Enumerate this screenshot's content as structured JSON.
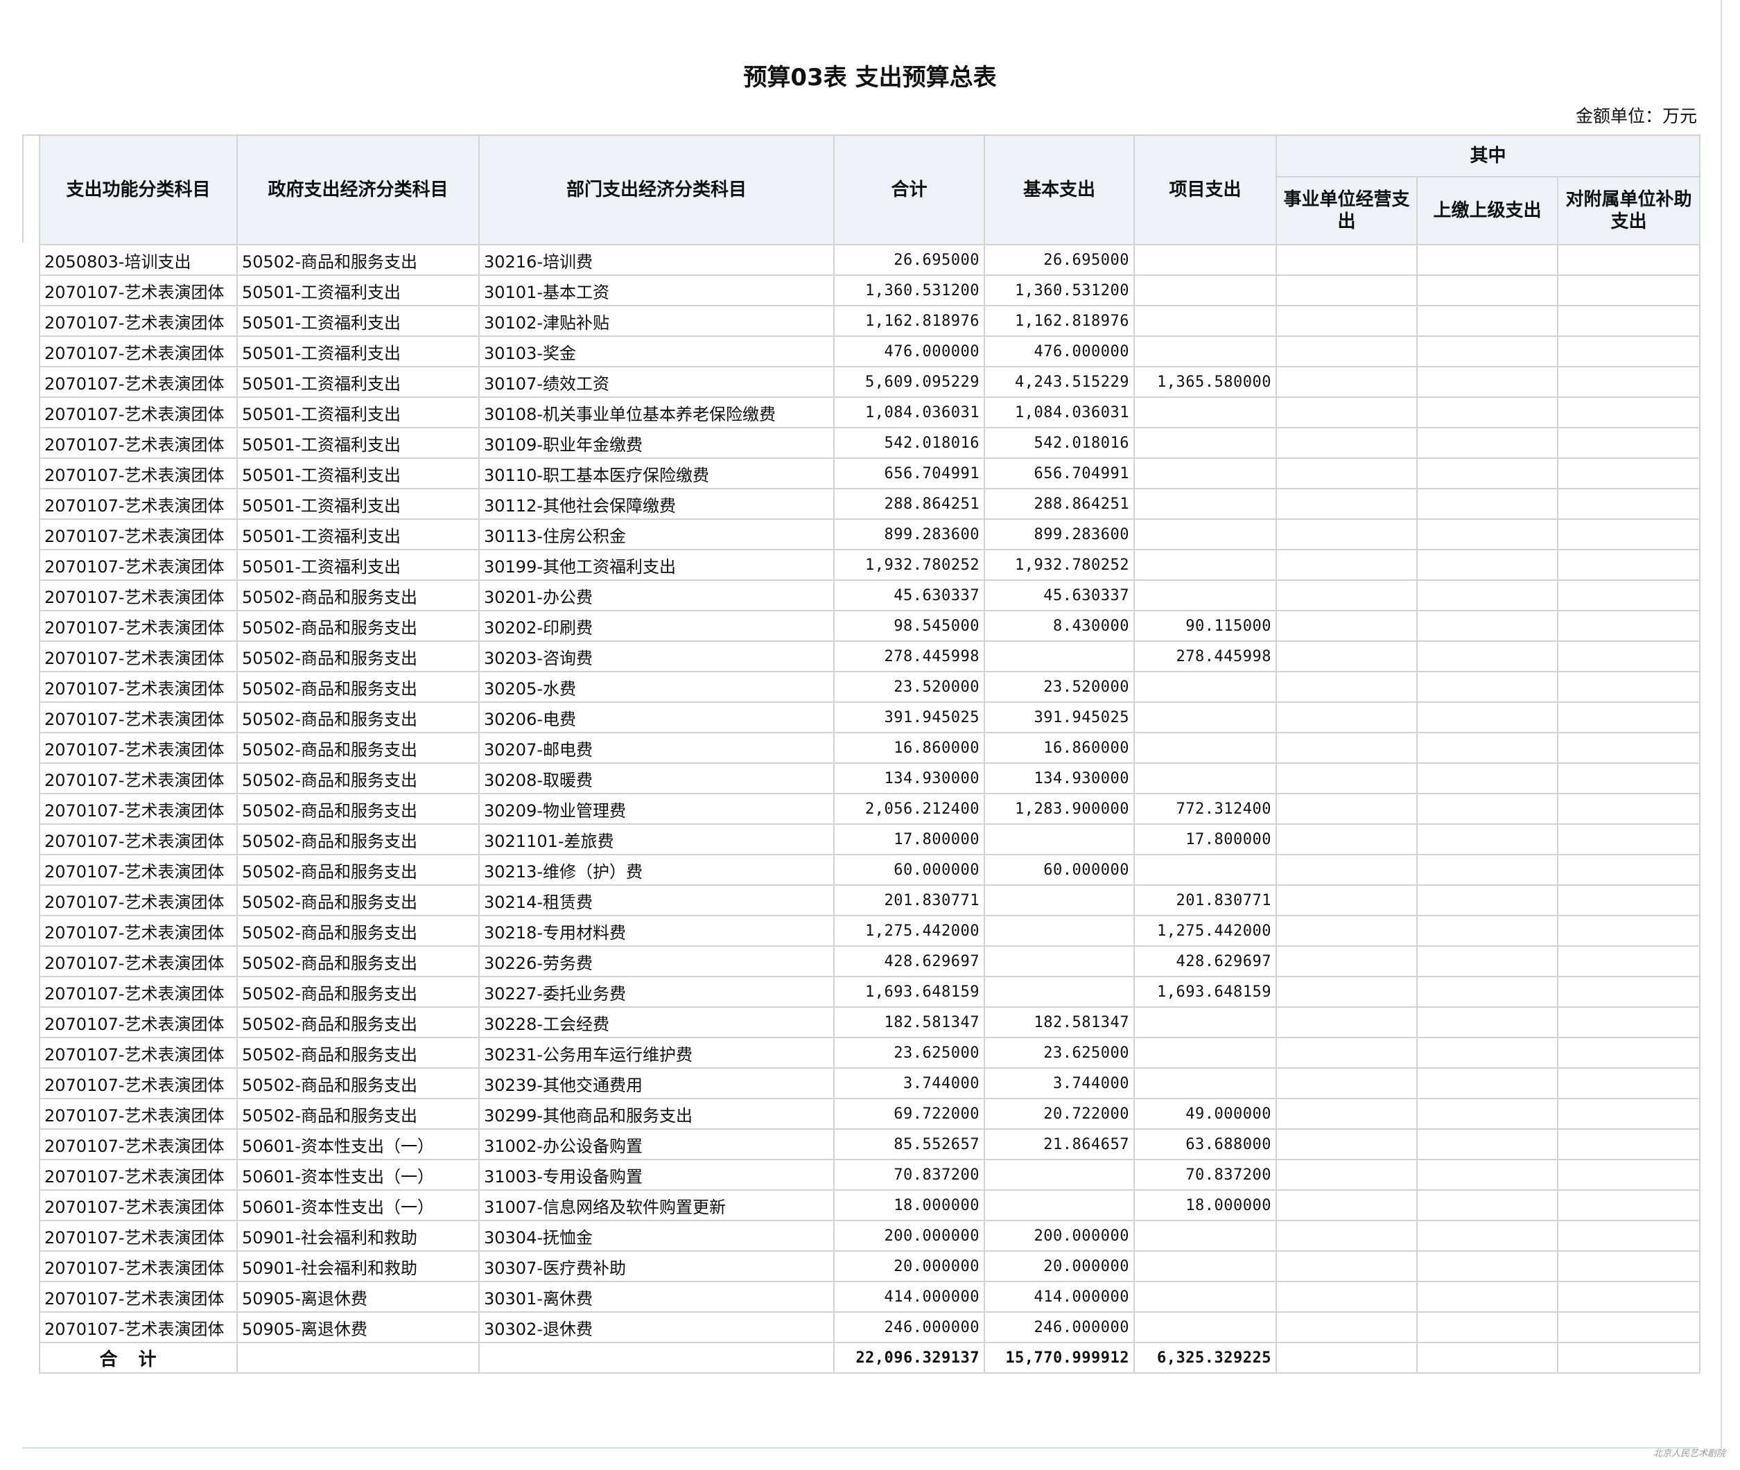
{
  "title": "预算03表 支出预算总表",
  "unit": "金额单位：万元",
  "headers": {
    "func": "支出功能分类科目",
    "gov": "政府支出经济分类科目",
    "dept": "部门支出经济分类科目",
    "total": "合计",
    "basic": "基本支出",
    "project": "项目支出",
    "among": "其中",
    "biz": "事业单位经营支出",
    "upper": "上缴上级支出",
    "subsidy": "对附属单位补助支出"
  },
  "rows": [
    [
      "2050803-培训支出",
      "50502-商品和服务支出",
      "30216-培训费",
      "26.695000",
      "26.695000",
      ""
    ],
    [
      "2070107-艺术表演团体",
      "50501-工资福利支出",
      "30101-基本工资",
      "1,360.531200",
      "1,360.531200",
      ""
    ],
    [
      "2070107-艺术表演团体",
      "50501-工资福利支出",
      "30102-津贴补贴",
      "1,162.818976",
      "1,162.818976",
      ""
    ],
    [
      "2070107-艺术表演团体",
      "50501-工资福利支出",
      "30103-奖金",
      "476.000000",
      "476.000000",
      ""
    ],
    [
      "2070107-艺术表演团体",
      "50501-工资福利支出",
      "30107-绩效工资",
      "5,609.095229",
      "4,243.515229",
      "1,365.580000"
    ],
    [
      "2070107-艺术表演团体",
      "50501-工资福利支出",
      "30108-机关事业单位基本养老保险缴费",
      "1,084.036031",
      "1,084.036031",
      ""
    ],
    [
      "2070107-艺术表演团体",
      "50501-工资福利支出",
      "30109-职业年金缴费",
      "542.018016",
      "542.018016",
      ""
    ],
    [
      "2070107-艺术表演团体",
      "50501-工资福利支出",
      "30110-职工基本医疗保险缴费",
      "656.704991",
      "656.704991",
      ""
    ],
    [
      "2070107-艺术表演团体",
      "50501-工资福利支出",
      "30112-其他社会保障缴费",
      "288.864251",
      "288.864251",
      ""
    ],
    [
      "2070107-艺术表演团体",
      "50501-工资福利支出",
      "30113-住房公积金",
      "899.283600",
      "899.283600",
      ""
    ],
    [
      "2070107-艺术表演团体",
      "50501-工资福利支出",
      "30199-其他工资福利支出",
      "1,932.780252",
      "1,932.780252",
      ""
    ],
    [
      "2070107-艺术表演团体",
      "50502-商品和服务支出",
      "30201-办公费",
      "45.630337",
      "45.630337",
      ""
    ],
    [
      "2070107-艺术表演团体",
      "50502-商品和服务支出",
      "30202-印刷费",
      "98.545000",
      "8.430000",
      "90.115000"
    ],
    [
      "2070107-艺术表演团体",
      "50502-商品和服务支出",
      "30203-咨询费",
      "278.445998",
      "",
      "278.445998"
    ],
    [
      "2070107-艺术表演团体",
      "50502-商品和服务支出",
      "30205-水费",
      "23.520000",
      "23.520000",
      ""
    ],
    [
      "2070107-艺术表演团体",
      "50502-商品和服务支出",
      "30206-电费",
      "391.945025",
      "391.945025",
      ""
    ],
    [
      "2070107-艺术表演团体",
      "50502-商品和服务支出",
      "30207-邮电费",
      "16.860000",
      "16.860000",
      ""
    ],
    [
      "2070107-艺术表演团体",
      "50502-商品和服务支出",
      "30208-取暖费",
      "134.930000",
      "134.930000",
      ""
    ],
    [
      "2070107-艺术表演团体",
      "50502-商品和服务支出",
      "30209-物业管理费",
      "2,056.212400",
      "1,283.900000",
      "772.312400"
    ],
    [
      "2070107-艺术表演团体",
      "50502-商品和服务支出",
      "3021101-差旅费",
      "17.800000",
      "",
      "17.800000"
    ],
    [
      "2070107-艺术表演团体",
      "50502-商品和服务支出",
      "30213-维修（护）费",
      "60.000000",
      "60.000000",
      ""
    ],
    [
      "2070107-艺术表演团体",
      "50502-商品和服务支出",
      "30214-租赁费",
      "201.830771",
      "",
      "201.830771"
    ],
    [
      "2070107-艺术表演团体",
      "50502-商品和服务支出",
      "30218-专用材料费",
      "1,275.442000",
      "",
      "1,275.442000"
    ],
    [
      "2070107-艺术表演团体",
      "50502-商品和服务支出",
      "30226-劳务费",
      "428.629697",
      "",
      "428.629697"
    ],
    [
      "2070107-艺术表演团体",
      "50502-商品和服务支出",
      "30227-委托业务费",
      "1,693.648159",
      "",
      "1,693.648159"
    ],
    [
      "2070107-艺术表演团体",
      "50502-商品和服务支出",
      "30228-工会经费",
      "182.581347",
      "182.581347",
      ""
    ],
    [
      "2070107-艺术表演团体",
      "50502-商品和服务支出",
      "30231-公务用车运行维护费",
      "23.625000",
      "23.625000",
      ""
    ],
    [
      "2070107-艺术表演团体",
      "50502-商品和服务支出",
      "30239-其他交通费用",
      "3.744000",
      "3.744000",
      ""
    ],
    [
      "2070107-艺术表演团体",
      "50502-商品和服务支出",
      "30299-其他商品和服务支出",
      "69.722000",
      "20.722000",
      "49.000000"
    ],
    [
      "2070107-艺术表演团体",
      "50601-资本性支出（一）",
      "31002-办公设备购置",
      "85.552657",
      "21.864657",
      "63.688000"
    ],
    [
      "2070107-艺术表演团体",
      "50601-资本性支出（一）",
      "31003-专用设备购置",
      "70.837200",
      "",
      "70.837200"
    ],
    [
      "2070107-艺术表演团体",
      "50601-资本性支出（一）",
      "31007-信息网络及软件购置更新",
      "18.000000",
      "",
      "18.000000"
    ],
    [
      "2070107-艺术表演团体",
      "50901-社会福利和救助",
      "30304-抚恤金",
      "200.000000",
      "200.000000",
      ""
    ],
    [
      "2070107-艺术表演团体",
      "50901-社会福利和救助",
      "30307-医疗费补助",
      "20.000000",
      "20.000000",
      ""
    ],
    [
      "2070107-艺术表演团体",
      "50905-离退休费",
      "30301-离休费",
      "414.000000",
      "414.000000",
      ""
    ],
    [
      "2070107-艺术表演团体",
      "50905-离退休费",
      "30302-退休费",
      "246.000000",
      "246.000000",
      ""
    ]
  ],
  "total": {
    "label": "合计",
    "total": "22,096.329137",
    "basic": "15,770.999912",
    "project": "6,325.329225"
  },
  "watermark": "北京人民艺术剧院"
}
